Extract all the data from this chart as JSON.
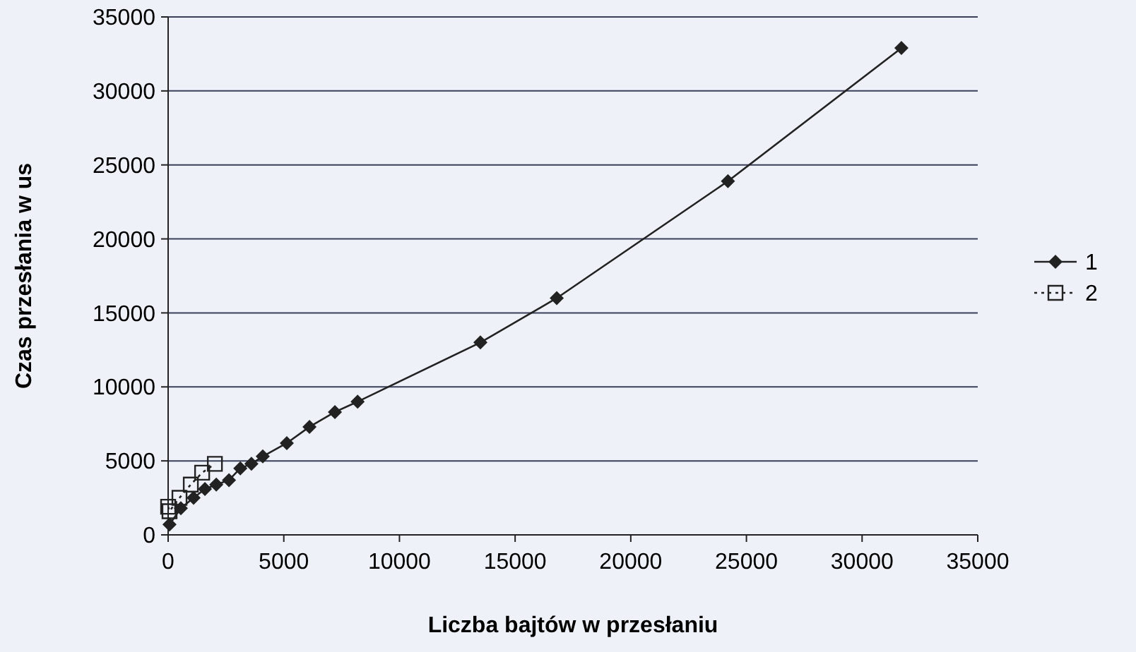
{
  "chart_data": {
    "type": "line",
    "xlabel": "Liczba bajtów w przesłaniu",
    "ylabel": "Czas przesłania w us",
    "xlim": [
      0,
      35000
    ],
    "xticks": [
      0,
      5000,
      10000,
      15000,
      20000,
      25000,
      30000,
      35000
    ],
    "ylim": [
      0,
      35000
    ],
    "yticks": [
      0,
      5000,
      10000,
      15000,
      20000,
      25000,
      30000,
      35000
    ],
    "grid": "y",
    "legend": "right",
    "series": [
      {
        "name": "1",
        "color": "#222222",
        "marker": "diamond",
        "line_style": "solid",
        "x": [
          60,
          550,
          1100,
          1590,
          2080,
          2630,
          3120,
          3600,
          4090,
          5130,
          6110,
          7210,
          8190,
          13500,
          16800,
          24200,
          31700
        ],
        "values": [
          700,
          1800,
          2500,
          3100,
          3400,
          3700,
          4500,
          4800,
          5300,
          6200,
          7300,
          8300,
          9000,
          13000,
          16000,
          23900,
          32900
        ]
      },
      {
        "name": "2",
        "color": "#222222",
        "marker": "square",
        "line_style": "dotted",
        "x": [
          0,
          60,
          490,
          980,
          1470,
          2020
        ],
        "values": [
          1900,
          1600,
          2500,
          3400,
          4200,
          4800
        ]
      }
    ]
  }
}
